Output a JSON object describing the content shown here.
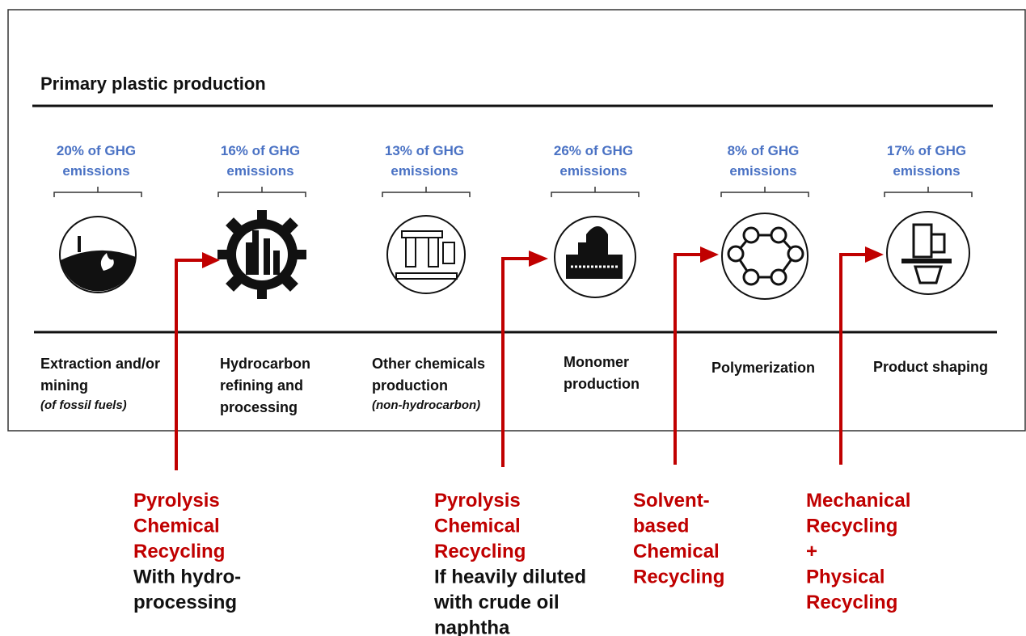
{
  "title": "Primary plastic production",
  "stages": [
    {
      "emissions": [
        "20% of GHG",
        "emissions"
      ],
      "name": [
        "Extraction and/or",
        "mining"
      ],
      "note": "(of fossil fuels)"
    },
    {
      "emissions": [
        "16% of GHG",
        "emissions"
      ],
      "name": [
        "Hydrocarbon",
        "refining and",
        "processing"
      ]
    },
    {
      "emissions": [
        "13% of GHG",
        "emissions"
      ],
      "name": [
        "Other chemicals",
        "production"
      ],
      "note": "(non-hydrocarbon)"
    },
    {
      "emissions": [
        "26% of GHG",
        "emissions"
      ],
      "name": [
        "Monomer",
        "production"
      ]
    },
    {
      "emissions": [
        "8% of GHG",
        "emissions"
      ],
      "name": [
        "Polymerization"
      ]
    },
    {
      "emissions": [
        "17% of GHG",
        "emissions"
      ],
      "name": [
        "Product shaping"
      ]
    }
  ],
  "recycling": [
    {
      "method": [
        "Pyrolysis",
        "Chemical",
        "Recycling"
      ],
      "condition": [
        "With hydro-",
        "processing"
      ]
    },
    {
      "method": [
        "Pyrolysis",
        "Chemical",
        "Recycling"
      ],
      "condition": [
        "If heavily diluted",
        "with crude oil",
        "naphtha"
      ]
    },
    {
      "method": [
        "Solvent-",
        "based",
        "Chemical",
        "Recycling"
      ]
    },
    {
      "method": [
        "Mechanical",
        "Recycling",
        "+",
        "Physical",
        "Recycling"
      ]
    }
  ]
}
